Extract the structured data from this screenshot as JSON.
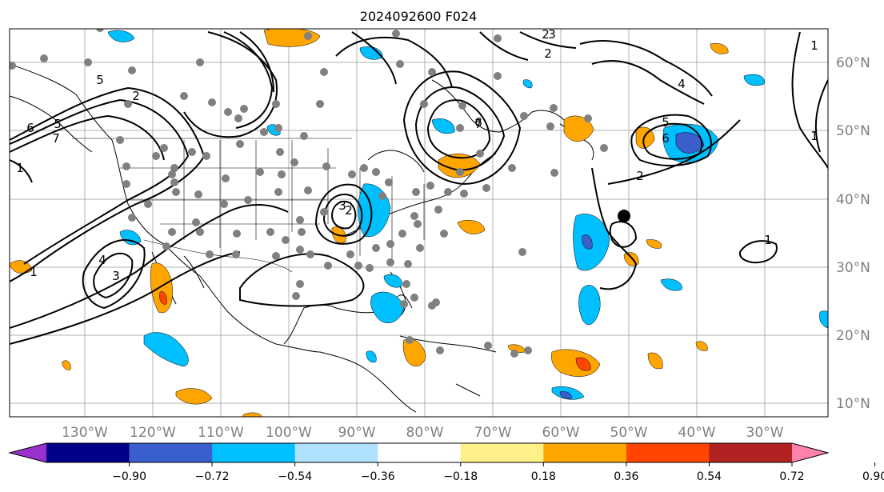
{
  "figure": {
    "title": "2024092600 F024"
  },
  "map": {
    "lon_ticks": [
      "130°W",
      "120°W",
      "110°W",
      "100°W",
      "90°W",
      "80°W",
      "70°W",
      "60°W",
      "50°W",
      "40°W",
      "30°W"
    ],
    "lat_ticks": [
      "60°N",
      "50°N",
      "40°N",
      "30°N",
      "20°N",
      "10°N"
    ],
    "contour_labels": [
      "2",
      "2",
      "3",
      "6",
      "5",
      "7",
      "1",
      "1",
      "4",
      "3",
      "5",
      "2",
      "7",
      "6",
      "3",
      "2",
      "4",
      "5",
      "6",
      "2",
      "1",
      "1",
      "1"
    ]
  },
  "colorbar": {
    "ticks": [
      "−0.90",
      "−0.72",
      "−0.54",
      "−0.36",
      "−0.18",
      "0.18",
      "0.36",
      "0.54",
      "0.72",
      "0.90"
    ],
    "colors": [
      "#9932cc",
      "#00008b",
      "#3a5fcd",
      "#00bfff",
      "#b0e2ff",
      "#ffffff",
      "#fff08a",
      "#ffa500",
      "#ff4500",
      "#b22222",
      "#ff82ab"
    ]
  }
}
